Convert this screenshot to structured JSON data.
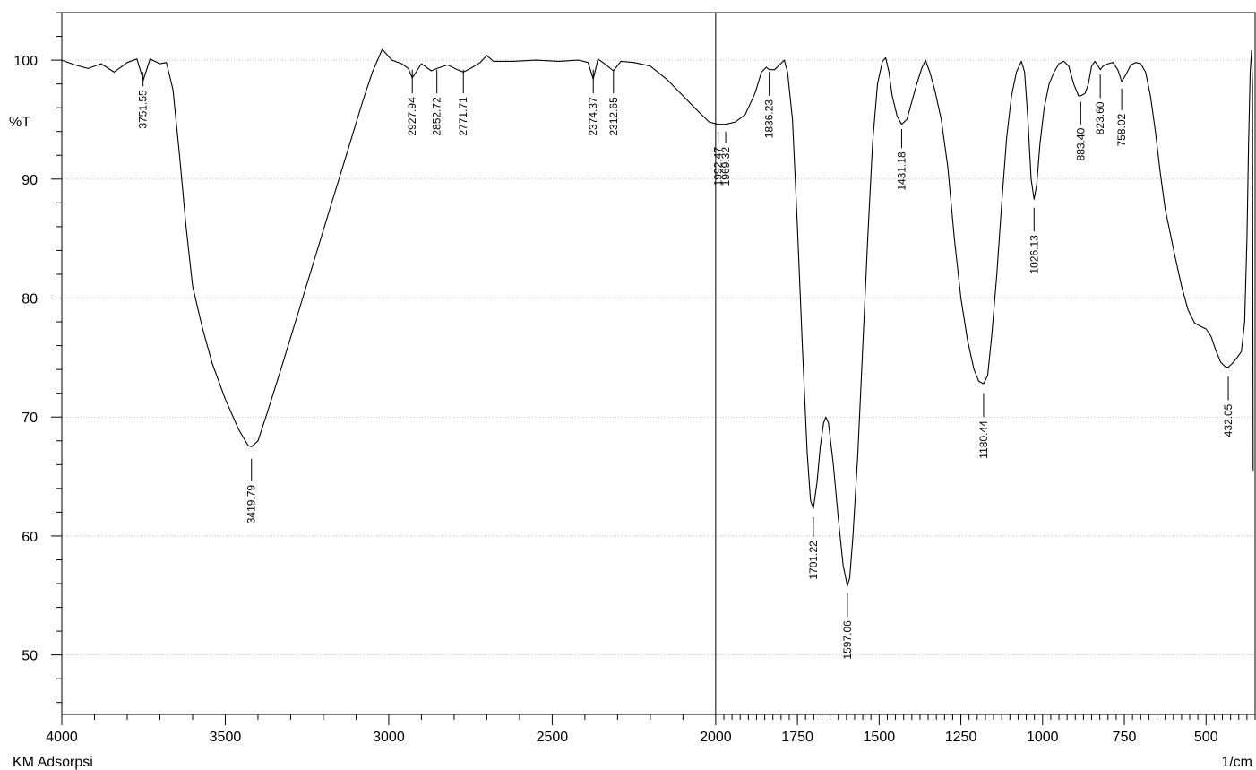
{
  "chart_data": {
    "type": "line",
    "title": "",
    "sample_label": "KM Adsorpsi",
    "xlabel": "1/cm",
    "ylabel": "%T",
    "x_reversed": true,
    "xlim": [
      4000,
      350
    ],
    "ylim": [
      45,
      104
    ],
    "grid": true,
    "x_ticks": [
      {
        "value": 4000,
        "label": "4000"
      },
      {
        "value": 3500,
        "label": "3500"
      },
      {
        "value": 3000,
        "label": "3000"
      },
      {
        "value": 2500,
        "label": "2500"
      },
      {
        "value": 2000,
        "label": "2000"
      },
      {
        "value": 1750,
        "label": "1750"
      },
      {
        "value": 1500,
        "label": "1500"
      },
      {
        "value": 1250,
        "label": "1250"
      },
      {
        "value": 1000,
        "label": "1000"
      },
      {
        "value": 750,
        "label": "750"
      },
      {
        "value": 500,
        "label": "500"
      }
    ],
    "y_ticks": [
      {
        "value": 100,
        "label": "100"
      },
      {
        "value": 90,
        "label": "90"
      },
      {
        "value": 80,
        "label": "80"
      },
      {
        "value": 70,
        "label": "70"
      },
      {
        "value": 60,
        "label": "60"
      },
      {
        "value": 50,
        "label": "50"
      }
    ],
    "vertical_marker": 2000,
    "series": [
      {
        "color": "#000000",
        "points": [
          [
            4000,
            100.0
          ],
          [
            3960,
            99.6
          ],
          [
            3920,
            99.3
          ],
          [
            3880,
            99.7
          ],
          [
            3840,
            99.0
          ],
          [
            3800,
            99.8
          ],
          [
            3770,
            100.1
          ],
          [
            3751,
            98.3
          ],
          [
            3730,
            100.1
          ],
          [
            3700,
            99.7
          ],
          [
            3680,
            99.8
          ],
          [
            3660,
            97.5
          ],
          [
            3640,
            92.0
          ],
          [
            3620,
            86.0
          ],
          [
            3600,
            81.0
          ],
          [
            3570,
            77.5
          ],
          [
            3540,
            74.5
          ],
          [
            3500,
            71.5
          ],
          [
            3460,
            69.0
          ],
          [
            3430,
            67.6
          ],
          [
            3419.79,
            67.5
          ],
          [
            3400,
            68.0
          ],
          [
            3370,
            70.5
          ],
          [
            3330,
            74.0
          ],
          [
            3280,
            78.5
          ],
          [
            3230,
            83.0
          ],
          [
            3180,
            87.5
          ],
          [
            3130,
            92.0
          ],
          [
            3080,
            96.5
          ],
          [
            3050,
            99.0
          ],
          [
            3020,
            100.9
          ],
          [
            2990,
            100.0
          ],
          [
            2960,
            99.7
          ],
          [
            2940,
            99.3
          ],
          [
            2927.94,
            98.5
          ],
          [
            2900,
            99.7
          ],
          [
            2870,
            99.1
          ],
          [
            2852.72,
            99.3
          ],
          [
            2820,
            99.6
          ],
          [
            2790,
            99.2
          ],
          [
            2771.71,
            99.0
          ],
          [
            2750,
            99.3
          ],
          [
            2720,
            99.8
          ],
          [
            2700,
            100.4
          ],
          [
            2680,
            99.9
          ],
          [
            2620,
            99.9
          ],
          [
            2550,
            100.0
          ],
          [
            2480,
            99.9
          ],
          [
            2420,
            100.0
          ],
          [
            2390,
            99.8
          ],
          [
            2374.37,
            98.4
          ],
          [
            2360,
            100.1
          ],
          [
            2340,
            99.7
          ],
          [
            2312.65,
            99.1
          ],
          [
            2290,
            99.9
          ],
          [
            2250,
            99.8
          ],
          [
            2200,
            99.5
          ],
          [
            2150,
            98.4
          ],
          [
            2100,
            97.0
          ],
          [
            2050,
            95.6
          ],
          [
            2020,
            94.8
          ],
          [
            1992.47,
            94.6
          ],
          [
            1969.32,
            94.6
          ],
          [
            1940,
            94.8
          ],
          [
            1910,
            95.4
          ],
          [
            1880,
            97.2
          ],
          [
            1860,
            99.0
          ],
          [
            1845,
            99.4
          ],
          [
            1836.23,
            99.2
          ],
          [
            1820,
            99.2
          ],
          [
            1805,
            99.6
          ],
          [
            1790,
            100.0
          ],
          [
            1780,
            99.0
          ],
          [
            1765,
            95.0
          ],
          [
            1750,
            86.0
          ],
          [
            1735,
            76.0
          ],
          [
            1720,
            67.0
          ],
          [
            1710,
            63.0
          ],
          [
            1701.22,
            62.3
          ],
          [
            1690,
            64.5
          ],
          [
            1680,
            67.5
          ],
          [
            1670,
            69.5
          ],
          [
            1663,
            70.0
          ],
          [
            1655,
            69.5
          ],
          [
            1640,
            66.0
          ],
          [
            1625,
            61.5
          ],
          [
            1610,
            57.5
          ],
          [
            1597.06,
            55.8
          ],
          [
            1590,
            56.5
          ],
          [
            1580,
            60.0
          ],
          [
            1565,
            67.0
          ],
          [
            1550,
            76.0
          ],
          [
            1535,
            85.0
          ],
          [
            1520,
            93.0
          ],
          [
            1505,
            98.0
          ],
          [
            1490,
            99.9
          ],
          [
            1480,
            100.2
          ],
          [
            1470,
            99.0
          ],
          [
            1460,
            97.0
          ],
          [
            1445,
            95.3
          ],
          [
            1431.18,
            94.6
          ],
          [
            1415,
            95.0
          ],
          [
            1400,
            96.5
          ],
          [
            1385,
            98.0
          ],
          [
            1370,
            99.3
          ],
          [
            1358,
            100.0
          ],
          [
            1345,
            99.0
          ],
          [
            1330,
            97.5
          ],
          [
            1310,
            95.0
          ],
          [
            1290,
            91.0
          ],
          [
            1270,
            85.0
          ],
          [
            1250,
            80.0
          ],
          [
            1230,
            76.5
          ],
          [
            1210,
            74.0
          ],
          [
            1195,
            73.0
          ],
          [
            1180.44,
            72.8
          ],
          [
            1168,
            73.5
          ],
          [
            1155,
            77.0
          ],
          [
            1140,
            82.0
          ],
          [
            1125,
            88.0
          ],
          [
            1110,
            93.5
          ],
          [
            1095,
            97.0
          ],
          [
            1080,
            99.0
          ],
          [
            1065,
            99.9
          ],
          [
            1055,
            99.0
          ],
          [
            1045,
            95.0
          ],
          [
            1035,
            90.0
          ],
          [
            1026.13,
            88.3
          ],
          [
            1018,
            89.5
          ],
          [
            1008,
            93.0
          ],
          [
            995,
            96.0
          ],
          [
            980,
            98.0
          ],
          [
            965,
            99.0
          ],
          [
            950,
            99.7
          ],
          [
            935,
            99.9
          ],
          [
            920,
            99.5
          ],
          [
            905,
            98.0
          ],
          [
            890,
            97.0
          ],
          [
            883.4,
            97.0
          ],
          [
            870,
            97.2
          ],
          [
            860,
            98.0
          ],
          [
            850,
            99.5
          ],
          [
            840,
            99.9
          ],
          [
            830,
            99.5
          ],
          [
            823.6,
            99.2
          ],
          [
            815,
            99.5
          ],
          [
            800,
            99.7
          ],
          [
            785,
            99.8
          ],
          [
            770,
            99.2
          ],
          [
            758.02,
            98.2
          ],
          [
            745,
            98.8
          ],
          [
            730,
            99.6
          ],
          [
            715,
            99.8
          ],
          [
            700,
            99.7
          ],
          [
            685,
            99.0
          ],
          [
            670,
            97.0
          ],
          [
            655,
            94.0
          ],
          [
            640,
            90.5
          ],
          [
            625,
            87.5
          ],
          [
            610,
            85.5
          ],
          [
            595,
            83.5
          ],
          [
            575,
            81.0
          ],
          [
            555,
            79.0
          ],
          [
            535,
            77.9
          ],
          [
            515,
            77.6
          ],
          [
            500,
            77.4
          ],
          [
            485,
            76.8
          ],
          [
            470,
            75.6
          ],
          [
            455,
            74.6
          ],
          [
            440,
            74.2
          ],
          [
            432.05,
            74.2
          ],
          [
            420,
            74.5
          ],
          [
            405,
            75.0
          ],
          [
            392,
            75.5
          ],
          [
            382,
            78.0
          ],
          [
            375,
            85.0
          ],
          [
            370,
            93.0
          ],
          [
            365,
            99.0
          ],
          [
            361,
            100.8
          ],
          [
            358,
            98.0
          ],
          [
            356,
            65.5
          ]
        ]
      }
    ],
    "peaks": [
      {
        "x": 3751.55,
        "label": "3751.55",
        "side": "below",
        "y_start": 99.0,
        "y_end": 97.8
      },
      {
        "x": 3419.79,
        "label": "3419.79",
        "side": "below",
        "y_start": 66.5,
        "y_end": 64.6
      },
      {
        "x": 2927.94,
        "label": "2927.94",
        "side": "below",
        "y_start": 99.2,
        "y_end": 97.2
      },
      {
        "x": 2852.72,
        "label": "2852.72",
        "side": "below",
        "y_start": 99.2,
        "y_end": 97.2
      },
      {
        "x": 2771.71,
        "label": "2771.71",
        "side": "below",
        "y_start": 99.2,
        "y_end": 97.2
      },
      {
        "x": 2374.37,
        "label": "2374.37",
        "side": "below",
        "y_start": 99.2,
        "y_end": 97.2
      },
      {
        "x": 2312.65,
        "label": "2312.65",
        "side": "below",
        "y_start": 99.2,
        "y_end": 97.2
      },
      {
        "x": 1992.47,
        "label": "1992.47",
        "side": "below",
        "y_start": 94.0,
        "y_end": 93.0
      },
      {
        "x": 1969.32,
        "label": "1969.32",
        "side": "below",
        "y_start": 94.0,
        "y_end": 93.0
      },
      {
        "x": 1836.23,
        "label": "1836.23",
        "side": "below",
        "y_start": 99.0,
        "y_end": 97.0
      },
      {
        "x": 1701.22,
        "label": "1701.22",
        "side": "above",
        "y_start": 61.6,
        "y_end": 59.9
      },
      {
        "x": 1597.06,
        "label": "1597.06",
        "side": "above",
        "y_start": 55.2,
        "y_end": 53.2
      },
      {
        "x": 1431.18,
        "label": "1431.18",
        "side": "below",
        "y_start": 94.2,
        "y_end": 92.6
      },
      {
        "x": 1180.44,
        "label": "1180.44",
        "side": "below",
        "y_start": 72.0,
        "y_end": 70.0
      },
      {
        "x": 1026.13,
        "label": "1026.13",
        "side": "below",
        "y_start": 87.6,
        "y_end": 85.6
      },
      {
        "x": 883.4,
        "label": "883.40",
        "side": "below",
        "y_start": 96.5,
        "y_end": 94.6
      },
      {
        "x": 823.6,
        "label": "823.60",
        "side": "below",
        "y_start": 98.8,
        "y_end": 96.8
      },
      {
        "x": 758.02,
        "label": "758.02",
        "side": "below",
        "y_start": 97.6,
        "y_end": 95.8
      },
      {
        "x": 432.05,
        "label": "432.05",
        "side": "below",
        "y_start": 73.4,
        "y_end": 71.4
      }
    ]
  }
}
